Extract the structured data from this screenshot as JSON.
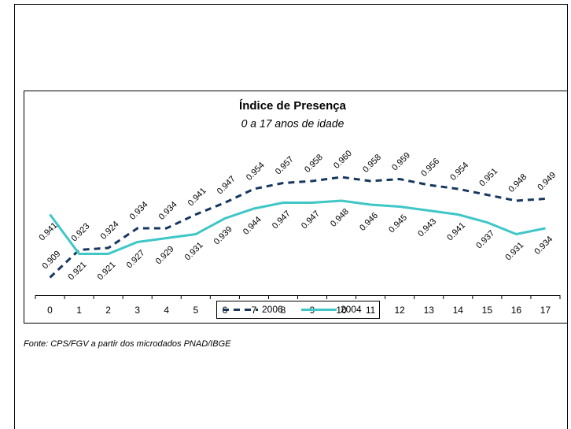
{
  "chart_data": {
    "type": "line",
    "title": "Índice de Presença",
    "subtitle": "0 a 17 anos de idade",
    "source": "Fonte: CPS/FGV a partir dos microdados PNAD/IBGE",
    "categories": [
      "0",
      "1",
      "2",
      "3",
      "4",
      "5",
      "6",
      "7",
      "8",
      "9",
      "10",
      "11",
      "12",
      "13",
      "14",
      "15",
      "16",
      "17"
    ],
    "ylim": [
      0.9,
      0.97
    ],
    "legend": "bottom",
    "series": [
      {
        "name": "2006",
        "color": "#17375e",
        "dash": true,
        "values": [
          0.909,
          0.923,
          0.924,
          0.934,
          0.934,
          0.941,
          0.947,
          0.954,
          0.957,
          0.958,
          0.96,
          0.958,
          0.959,
          0.956,
          0.954,
          0.951,
          0.948,
          0.949
        ],
        "value_labels": [
          "0.909",
          "0.923",
          "0.924",
          "0.934",
          "0.934",
          "0.941",
          "0.947",
          "0.954",
          "0.957",
          "0.958",
          "0.960",
          "0.958",
          "0.959",
          "0.956",
          "0.954",
          "0.951",
          "0.948",
          "0.949"
        ]
      },
      {
        "name": "2004",
        "color": "#3fc6c6",
        "dash": false,
        "values": [
          0.941,
          0.921,
          0.921,
          0.927,
          0.929,
          0.931,
          0.939,
          0.944,
          0.947,
          0.947,
          0.948,
          0.946,
          0.945,
          0.943,
          0.941,
          0.937,
          0.931,
          0.934
        ],
        "value_labels": [
          "0.941",
          "0.921",
          "0.921",
          "0.927",
          "0.929",
          "0.931",
          "0.939",
          "0.944",
          "0.947",
          "0.947",
          "0.948",
          "0.946",
          "0.945",
          "0.943",
          "0.941",
          "0.937",
          "0.931",
          "0.934"
        ]
      }
    ]
  }
}
